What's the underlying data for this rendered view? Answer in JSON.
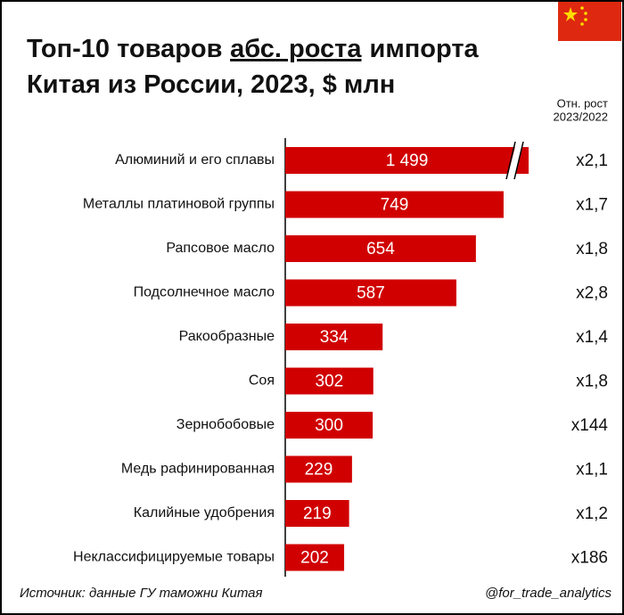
{
  "chart_data": {
    "type": "bar",
    "orientation": "horizontal",
    "title_lines": [
      [
        "Топ-10 товаров",
        "абс. роста",
        "импорта"
      ],
      [
        "Китая из России, 2023, $ млн"
      ]
    ],
    "title_underline": [
      0,
      1
    ],
    "categories": [
      "Алюминий и его сплавы",
      "Металлы платиновой группы",
      "Рапсовое масло",
      "Подсолнечное масло",
      "Ракообразные",
      "Соя",
      "Зернобобовые",
      "Медь рафинированная",
      "Калийные удобрения",
      "Неклассифицируемые товары"
    ],
    "values": [
      1499,
      749,
      654,
      587,
      334,
      302,
      300,
      229,
      219,
      202
    ],
    "value_labels": [
      "1 499",
      "749",
      "654",
      "587",
      "334",
      "302",
      "300",
      "229",
      "219",
      "202"
    ],
    "color": "#d00000",
    "axis_break": [
      0
    ],
    "growth_header": [
      "Отн. рост",
      "2023/2022"
    ],
    "growth": [
      "x2,1",
      "x1,7",
      "x1,8",
      "x2,8",
      "x1,4",
      "x1,8",
      "x144",
      "x1,1",
      "x1,2",
      "x186"
    ],
    "source": "Источник: данные ГУ таможни Китая",
    "credit": "@for_trade_analytics"
  }
}
